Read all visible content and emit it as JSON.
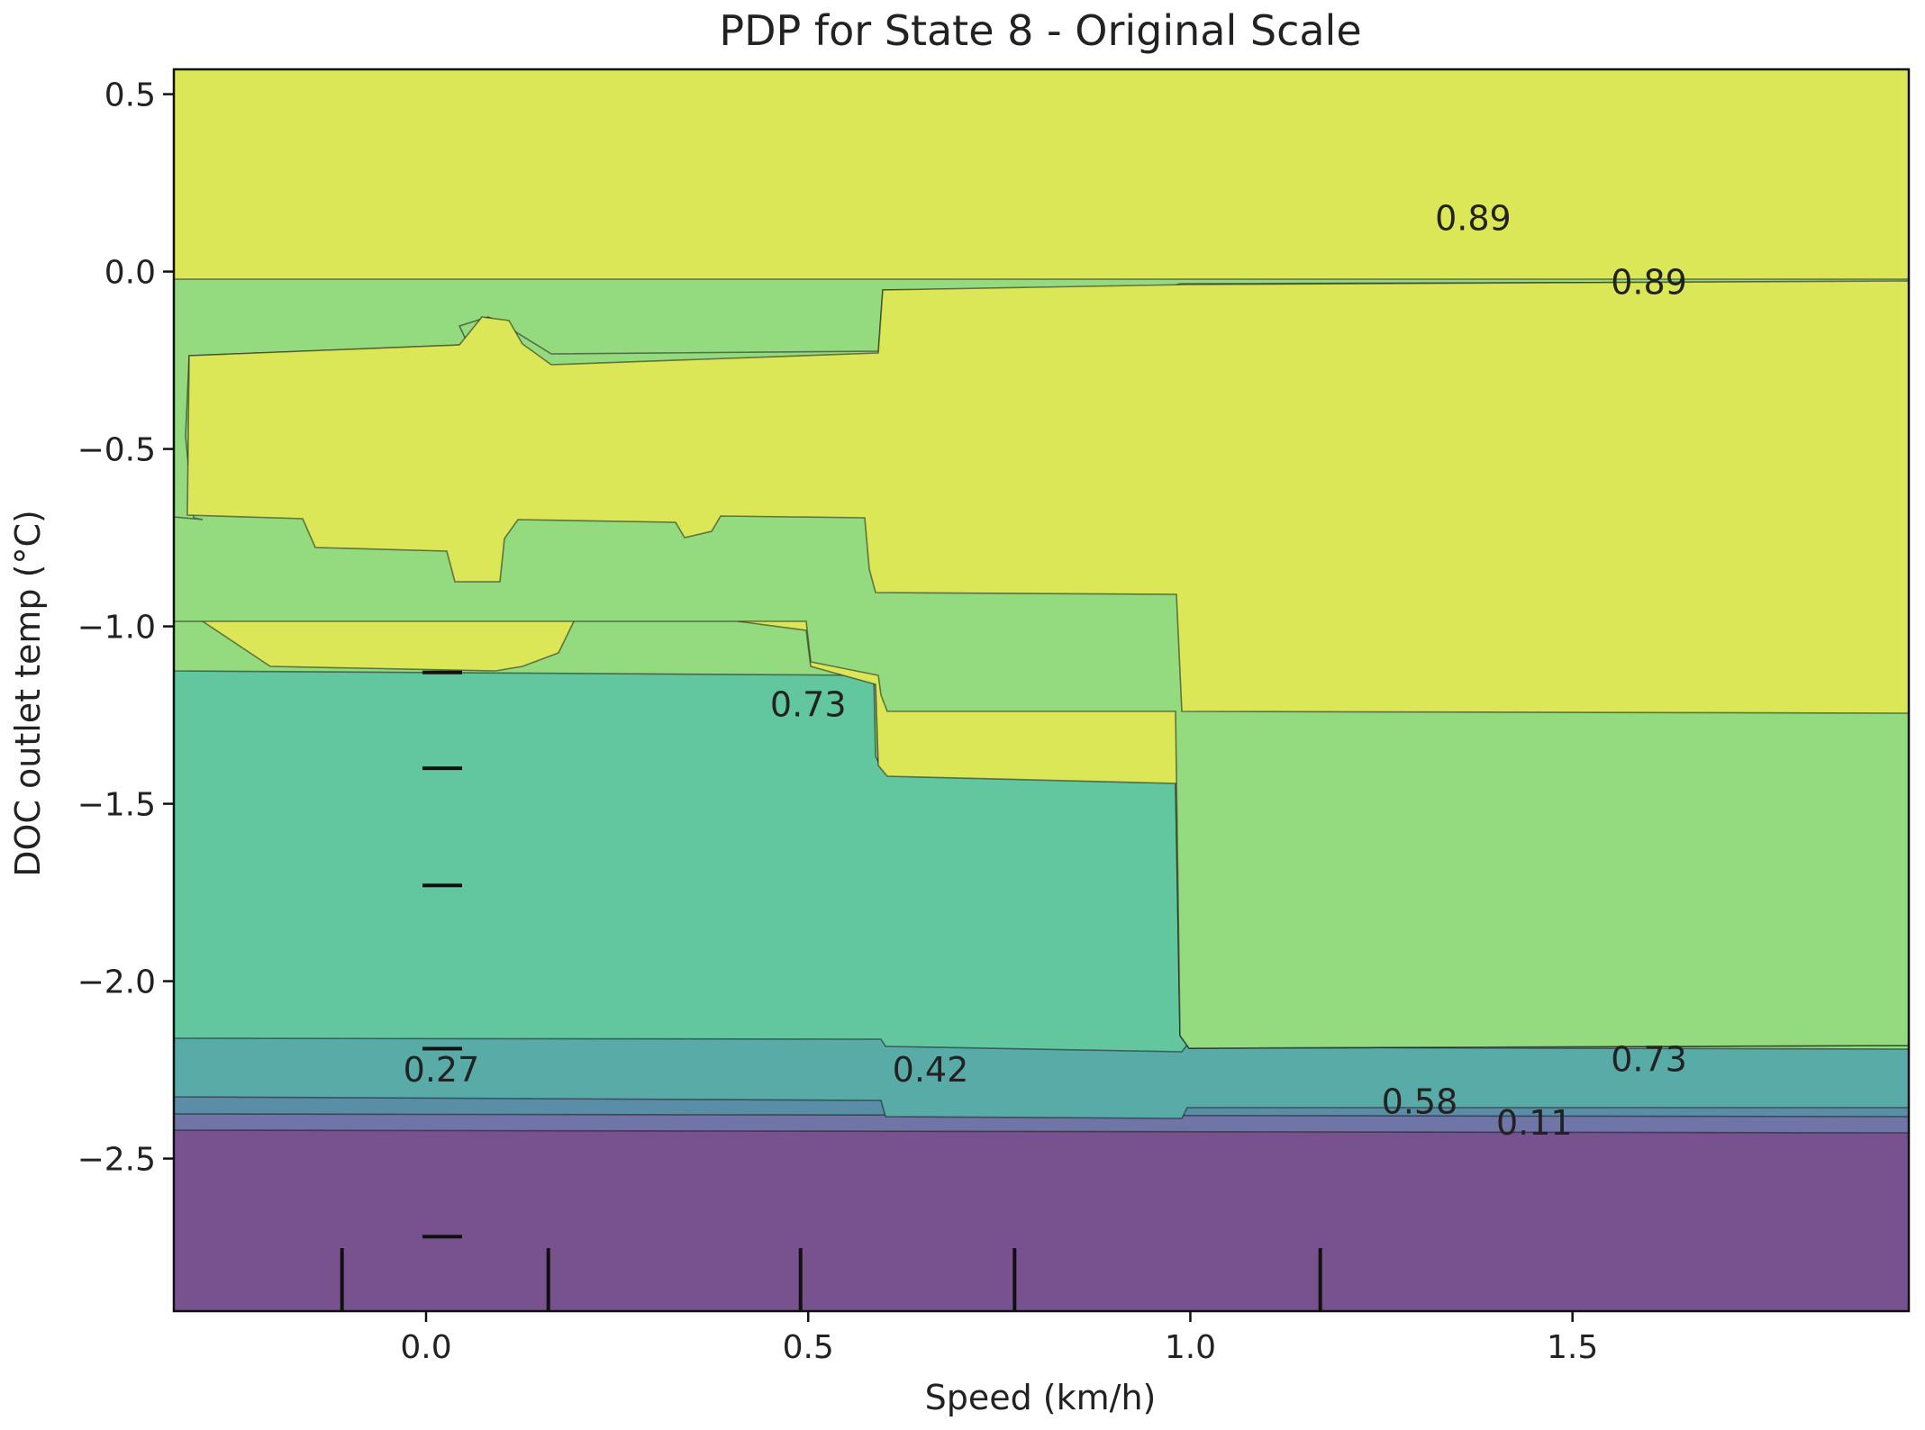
{
  "chart_data": {
    "type": "contour",
    "title": "PDP for State 8 - Original Scale",
    "xlabel": "Speed (km/h)",
    "ylabel": "DOC outlet temp (°C)",
    "xlim": [
      -0.33,
      1.94
    ],
    "ylim": [
      -2.93,
      0.57
    ],
    "xticks": [
      {
        "value": 0.0,
        "label": "0.0"
      },
      {
        "value": 0.5,
        "label": "0.5"
      },
      {
        "value": 1.0,
        "label": "1.0"
      },
      {
        "value": 1.5,
        "label": "1.5"
      }
    ],
    "yticks": [
      {
        "value": 0.5,
        "label": "0.5"
      },
      {
        "value": 0.0,
        "label": "0.0"
      },
      {
        "value": -0.5,
        "label": "−0.5"
      },
      {
        "value": -1.0,
        "label": "−1.0"
      },
      {
        "value": -1.5,
        "label": "−1.5"
      },
      {
        "value": -2.0,
        "label": "−2.0"
      },
      {
        "value": -2.5,
        "label": "−2.5"
      }
    ],
    "grid": false,
    "colormap": [
      "#77528f",
      "#6f75a6",
      "#5a8ea7",
      "#59aba8",
      "#62c69f",
      "#94da7e",
      "#dbe757"
    ],
    "contour_levels": [
      {
        "level": 0.11,
        "label": "0.11"
      },
      {
        "level": 0.27,
        "label": "0.27"
      },
      {
        "level": 0.42,
        "label": "0.42"
      },
      {
        "level": 0.58,
        "label": "0.58"
      },
      {
        "level": 0.73,
        "label": "0.73"
      },
      {
        "level": 0.89,
        "label": "0.89"
      }
    ],
    "contour_labels": [
      {
        "text": "0.89",
        "x": 1.37,
        "y": 0.15
      },
      {
        "text": "0.89",
        "x": 1.6,
        "y": -0.03
      },
      {
        "text": "0.73",
        "x": 0.5,
        "y": -1.22
      },
      {
        "text": "0.73",
        "x": 1.6,
        "y": -2.22
      },
      {
        "text": "0.58",
        "x": 1.3,
        "y": -2.34
      },
      {
        "text": "0.42",
        "x": 0.66,
        "y": -2.25
      },
      {
        "text": "0.27",
        "x": 0.02,
        "y": -2.25
      },
      {
        "text": "0.11",
        "x": 1.45,
        "y": -2.4
      }
    ],
    "rug_x": [
      -0.11,
      0.16,
      0.49,
      0.77,
      1.17
    ],
    "rug_y": [
      -1.13,
      -1.4,
      -1.73,
      -2.19,
      -2.72
    ]
  }
}
